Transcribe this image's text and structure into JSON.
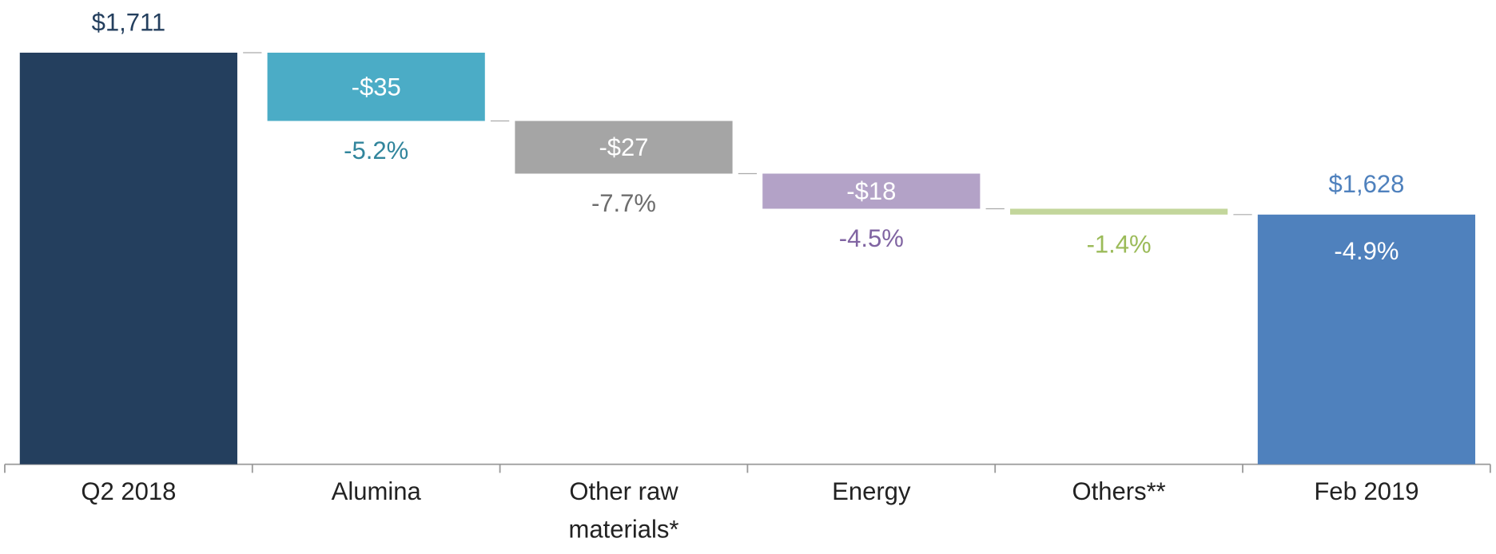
{
  "chart_data": {
    "type": "waterfall",
    "categories": [
      "Q2 2018",
      "Alumina",
      "Other raw materials*",
      "Energy",
      "Others**",
      "Feb 2019"
    ],
    "values": [
      1711,
      -35,
      -27,
      -18,
      -3,
      1628
    ],
    "value_labels": [
      "$1,711",
      "-$35",
      "-$27",
      "-$18",
      null,
      "$1,628"
    ],
    "percent_labels": [
      null,
      "-5.2%",
      "-7.7%",
      "-4.5%",
      "-1.4%",
      "-4.9%"
    ],
    "colors": [
      "#243f5e",
      "#4bacc6",
      "#a5a5a5",
      "#b3a2c7",
      "#c3d69b",
      "#4f81bd"
    ],
    "label_colors": [
      "#243f5e",
      "#31859c",
      "#6d6d6d",
      "#8064a2",
      "#9bbb59",
      "#4f81bd"
    ],
    "ylim": [
      1500,
      1735
    ]
  }
}
